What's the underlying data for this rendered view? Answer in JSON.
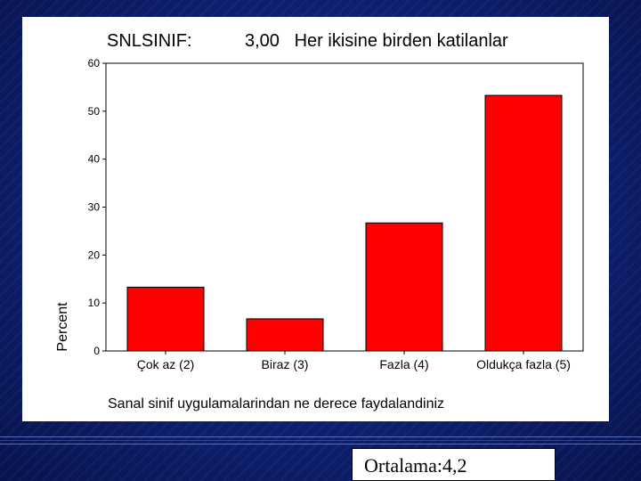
{
  "caption": "Ortalama:4,2",
  "colors": {
    "bar": "#ff0000",
    "bar_outline": "#000000",
    "background": "#0b1b66",
    "panel": "#ffffff"
  },
  "chart_data": {
    "type": "bar",
    "title_left": "SNLSINIF:",
    "title_right": "3,00   Her ikisine birden katilanlar",
    "categories": [
      "Çok az (2)",
      "Biraz (3)",
      "Fazla (4)",
      "Oldukça fazla (5)"
    ],
    "values": [
      13.3,
      6.7,
      26.7,
      53.3
    ],
    "xlabel": "Sanal sinif uygulamalarindan ne derece faydalandiniz",
    "ylabel": "Percent",
    "ylim": [
      0,
      60
    ],
    "yticks": [
      0,
      10,
      20,
      30,
      40,
      50,
      60
    ],
    "grid": false,
    "legend": "none"
  }
}
